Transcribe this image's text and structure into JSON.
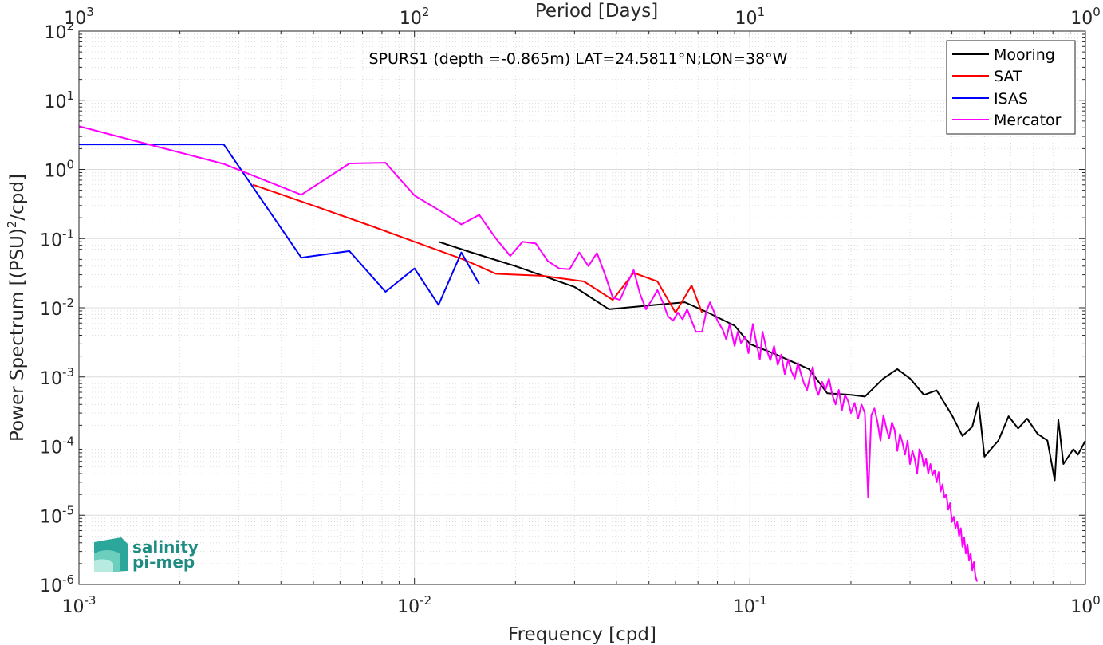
{
  "chart_data": {
    "type": "line",
    "title": "SPURS1 (depth =-0.865m) LAT=24.5811°N;LON=38°W",
    "xlabel": "Frequency [cpd]",
    "ylabel_parts": {
      "pre": "Power Spectrum [(PSU)",
      "sup": "2",
      "post": "/cpd]"
    },
    "x2label": "Period [Days]",
    "x_scale": "log",
    "y_scale": "log",
    "xlim": [
      0.001,
      1
    ],
    "ylim": [
      1e-06,
      100
    ],
    "x_ticks": [
      {
        "value": 0.001,
        "base": "10",
        "exp": "-3"
      },
      {
        "value": 0.01,
        "base": "10",
        "exp": "-2"
      },
      {
        "value": 0.1,
        "base": "10",
        "exp": "-1"
      },
      {
        "value": 1,
        "base": "10",
        "exp": "0"
      }
    ],
    "x2_ticks": [
      {
        "period": 1000,
        "base": "10",
        "exp": "3"
      },
      {
        "period": 100,
        "base": "10",
        "exp": "2"
      },
      {
        "period": 10,
        "base": "10",
        "exp": "1"
      },
      {
        "period": 1,
        "base": "10",
        "exp": "0"
      }
    ],
    "y_ticks": [
      {
        "value": 100,
        "base": "10",
        "exp": "2"
      },
      {
        "value": 10,
        "base": "10",
        "exp": "1"
      },
      {
        "value": 1,
        "base": "10",
        "exp": "0"
      },
      {
        "value": 0.1,
        "base": "10",
        "exp": "-1"
      },
      {
        "value": 0.01,
        "base": "10",
        "exp": "-2"
      },
      {
        "value": 0.001,
        "base": "10",
        "exp": "-3"
      },
      {
        "value": 0.0001,
        "base": "10",
        "exp": "-4"
      },
      {
        "value": 1e-05,
        "base": "10",
        "exp": "-5"
      },
      {
        "value": 1e-06,
        "base": "10",
        "exp": "-6"
      }
    ],
    "grid": true,
    "legend_position": "top-right",
    "series": [
      {
        "name": "Mooring",
        "color": "#000000",
        "points": [
          [
            0.0118,
            0.09
          ],
          [
            0.0145,
            0.065
          ],
          [
            0.02,
            0.04
          ],
          [
            0.03,
            0.02
          ],
          [
            0.038,
            0.0095
          ],
          [
            0.05,
            0.0108
          ],
          [
            0.064,
            0.012
          ],
          [
            0.075,
            0.0085
          ],
          [
            0.09,
            0.0055
          ],
          [
            0.1,
            0.003
          ],
          [
            0.12,
            0.0021
          ],
          [
            0.15,
            0.0013
          ],
          [
            0.17,
            0.00058
          ],
          [
            0.2,
            0.00055
          ],
          [
            0.22,
            0.00052
          ],
          [
            0.25,
            0.00095
          ],
          [
            0.275,
            0.0013
          ],
          [
            0.3,
            0.00095
          ],
          [
            0.33,
            0.00055
          ],
          [
            0.36,
            0.00064
          ],
          [
            0.4,
            0.00028
          ],
          [
            0.43,
            0.00014
          ],
          [
            0.46,
            0.00019
          ],
          [
            0.48,
            0.00043
          ],
          [
            0.5,
            7e-05
          ],
          [
            0.55,
            0.00012
          ],
          [
            0.59,
            0.00027
          ],
          [
            0.63,
            0.00018
          ],
          [
            0.67,
            0.00025
          ],
          [
            0.72,
            0.00015
          ],
          [
            0.77,
            0.00012
          ],
          [
            0.81,
            3.2e-05
          ],
          [
            0.83,
            0.00024
          ],
          [
            0.86,
            5.5e-05
          ],
          [
            0.92,
            9e-05
          ],
          [
            0.95,
            7.5e-05
          ],
          [
            1.0,
            0.00012
          ]
        ]
      },
      {
        "name": "SAT",
        "color": "#ff0000",
        "points": [
          [
            0.0033,
            0.6
          ],
          [
            0.005,
            0.3
          ],
          [
            0.0075,
            0.15
          ],
          [
            0.01,
            0.09
          ],
          [
            0.014,
            0.05
          ],
          [
            0.0175,
            0.031
          ],
          [
            0.024,
            0.029
          ],
          [
            0.032,
            0.024
          ],
          [
            0.039,
            0.013
          ],
          [
            0.045,
            0.032
          ],
          [
            0.053,
            0.024
          ],
          [
            0.06,
            0.0085
          ],
          [
            0.067,
            0.021
          ],
          [
            0.072,
            0.0085
          ]
        ]
      },
      {
        "name": "ISAS",
        "color": "#0000ff",
        "points": [
          [
            0.001,
            2.3
          ],
          [
            0.0027,
            2.3
          ],
          [
            0.0046,
            0.053
          ],
          [
            0.0064,
            0.066
          ],
          [
            0.0082,
            0.017
          ],
          [
            0.01,
            0.037
          ],
          [
            0.0118,
            0.011
          ],
          [
            0.0138,
            0.063
          ],
          [
            0.0156,
            0.022
          ]
        ]
      },
      {
        "name": "Mercator",
        "color": "#ff00ff",
        "points": [
          [
            0.001,
            4.2
          ],
          [
            0.0027,
            1.2
          ],
          [
            0.0046,
            0.43
          ],
          [
            0.0064,
            1.22
          ],
          [
            0.0082,
            1.25
          ],
          [
            0.01,
            0.42
          ],
          [
            0.0118,
            0.26
          ],
          [
            0.0138,
            0.16
          ],
          [
            0.0156,
            0.22
          ],
          [
            0.0175,
            0.1
          ],
          [
            0.0193,
            0.056
          ],
          [
            0.021,
            0.09
          ],
          [
            0.023,
            0.085
          ],
          [
            0.025,
            0.047
          ],
          [
            0.027,
            0.037
          ],
          [
            0.029,
            0.036
          ],
          [
            0.031,
            0.063
          ],
          [
            0.033,
            0.04
          ],
          [
            0.035,
            0.062
          ],
          [
            0.037,
            0.03
          ],
          [
            0.039,
            0.014
          ],
          [
            0.041,
            0.013
          ],
          [
            0.043,
            0.022
          ],
          [
            0.045,
            0.035
          ],
          [
            0.047,
            0.016
          ],
          [
            0.049,
            0.0095
          ],
          [
            0.051,
            0.013
          ],
          [
            0.053,
            0.018
          ],
          [
            0.055,
            0.012
          ],
          [
            0.057,
            0.0075
          ],
          [
            0.059,
            0.0065
          ],
          [
            0.061,
            0.0085
          ],
          [
            0.063,
            0.0068
          ],
          [
            0.065,
            0.0095
          ],
          [
            0.067,
            0.0065
          ],
          [
            0.069,
            0.0045
          ],
          [
            0.072,
            0.0045
          ],
          [
            0.074,
            0.0085
          ],
          [
            0.076,
            0.012
          ],
          [
            0.078,
            0.009
          ],
          [
            0.08,
            0.0065
          ],
          [
            0.083,
            0.0048
          ],
          [
            0.085,
            0.0035
          ],
          [
            0.087,
            0.0058
          ],
          [
            0.09,
            0.0028
          ],
          [
            0.092,
            0.0045
          ],
          [
            0.094,
            0.0031
          ],
          [
            0.097,
            0.0038
          ],
          [
            0.099,
            0.0022
          ],
          [
            0.102,
            0.0058
          ],
          [
            0.104,
            0.0035
          ],
          [
            0.107,
            0.0018
          ],
          [
            0.109,
            0.0045
          ],
          [
            0.112,
            0.0025
          ],
          [
            0.115,
            0.00175
          ],
          [
            0.118,
            0.0028
          ],
          [
            0.121,
            0.0015
          ],
          [
            0.124,
            0.0021
          ],
          [
            0.127,
            0.0011
          ],
          [
            0.13,
            0.0018
          ],
          [
            0.133,
            0.0012
          ],
          [
            0.136,
            0.00095
          ],
          [
            0.139,
            0.0016
          ],
          [
            0.142,
            0.0011
          ],
          [
            0.145,
            0.0008
          ],
          [
            0.148,
            0.00065
          ],
          [
            0.151,
            0.001
          ],
          [
            0.154,
            0.0014
          ],
          [
            0.157,
            0.0007
          ],
          [
            0.16,
            0.00055
          ],
          [
            0.164,
            0.00085
          ],
          [
            0.168,
            0.00065
          ],
          [
            0.172,
            0.00095
          ],
          [
            0.176,
            0.00055
          ],
          [
            0.18,
            0.0004
          ],
          [
            0.184,
            0.00065
          ],
          [
            0.188,
            0.00033
          ],
          [
            0.192,
            0.00055
          ],
          [
            0.196,
            0.00045
          ],
          [
            0.2,
            0.0003
          ],
          [
            0.205,
            0.00042
          ],
          [
            0.21,
            0.00025
          ],
          [
            0.215,
            0.0004
          ],
          [
            0.22,
            0.0003
          ],
          [
            0.225,
            1.8e-05
          ],
          [
            0.23,
            0.00028
          ],
          [
            0.235,
            0.00035
          ],
          [
            0.24,
            0.00022
          ],
          [
            0.245,
            0.00012
          ],
          [
            0.25,
            0.00028
          ],
          [
            0.255,
            0.00018
          ],
          [
            0.26,
            0.00013
          ],
          [
            0.265,
            0.00022
          ],
          [
            0.27,
            0.00017
          ],
          [
            0.275,
            8.5e-05
          ],
          [
            0.28,
            0.00015
          ],
          [
            0.285,
            0.00011
          ],
          [
            0.29,
            7.5e-05
          ],
          [
            0.295,
            0.00012
          ],
          [
            0.3,
            5.5e-05
          ],
          [
            0.305,
            8.5e-05
          ],
          [
            0.31,
            6.5e-05
          ],
          [
            0.315,
            4e-05
          ],
          [
            0.32,
            9e-05
          ],
          [
            0.325,
            7.5e-05
          ],
          [
            0.33,
            5e-05
          ],
          [
            0.335,
            6.5e-05
          ],
          [
            0.34,
            4e-05
          ],
          [
            0.345,
            5.5e-05
          ],
          [
            0.35,
            3.8e-05
          ],
          [
            0.355,
            4.5e-05
          ],
          [
            0.36,
            3e-05
          ],
          [
            0.365,
            4.2e-05
          ],
          [
            0.37,
            2.2e-05
          ],
          [
            0.375,
            2.8e-05
          ],
          [
            0.38,
            1.8e-05
          ],
          [
            0.385,
            2e-05
          ],
          [
            0.39,
            1.2e-05
          ],
          [
            0.395,
            1.5e-05
          ],
          [
            0.4,
            8e-06
          ],
          [
            0.405,
            9.5e-06
          ],
          [
            0.41,
            6.5e-06
          ],
          [
            0.415,
            8e-06
          ],
          [
            0.42,
            5e-06
          ],
          [
            0.425,
            6.5e-06
          ],
          [
            0.43,
            3.5e-06
          ],
          [
            0.435,
            4.8e-06
          ],
          [
            0.44,
            2.8e-06
          ],
          [
            0.445,
            3.8e-06
          ],
          [
            0.45,
            2.2e-06
          ],
          [
            0.455,
            2.8e-06
          ],
          [
            0.46,
            1.6e-06
          ],
          [
            0.465,
            2.1e-06
          ],
          [
            0.47,
            1.3e-06
          ],
          [
            0.475,
            1.1e-06
          ]
        ]
      }
    ],
    "logo": {
      "line1": "salinity",
      "line2": "pi-mep"
    }
  }
}
